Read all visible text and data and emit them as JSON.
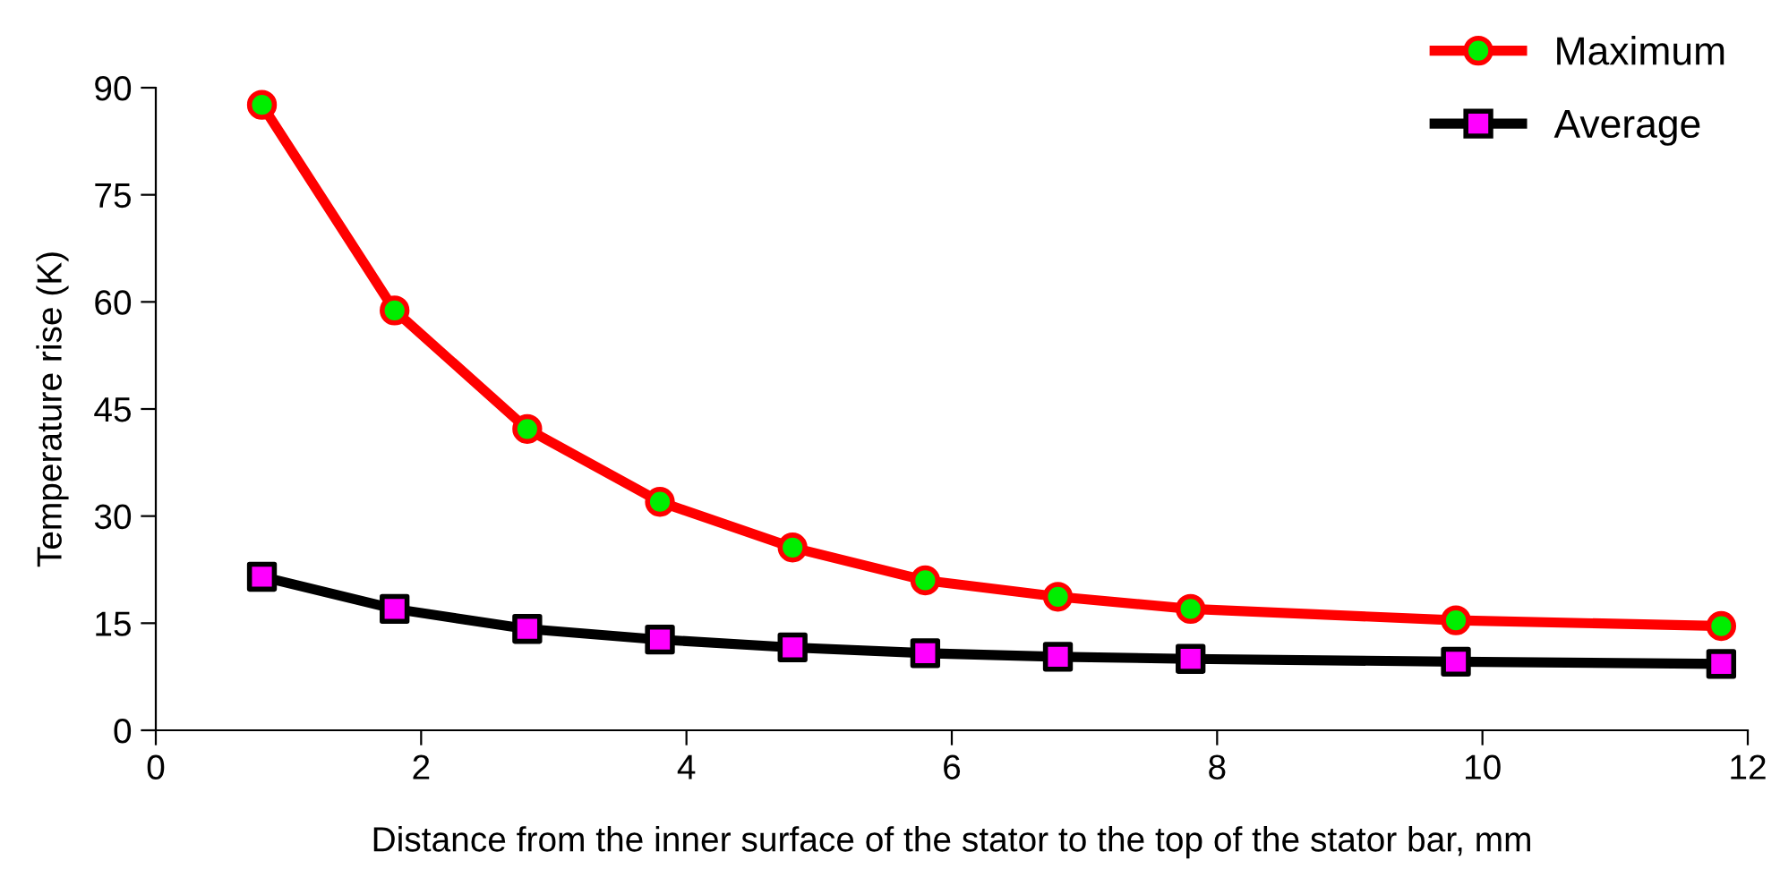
{
  "chart_data": {
    "type": "line",
    "xlabel": "Distance from the inner surface of the stator to the top of the stator bar, mm",
    "ylabel": "Temperature rise (K)",
    "x": [
      0.8,
      1.8,
      2.8,
      3.8,
      4.8,
      5.8,
      6.8,
      7.8,
      9.8,
      11.8
    ],
    "series": [
      {
        "name": "Maximum",
        "color": "#ff0000",
        "marker": "circle",
        "colors": [
          "#00ee00",
          "#00ee00",
          "#00ee00",
          "#00ee00",
          "#00ee00",
          "#00ee00",
          "#00ee00",
          "#00ee00",
          "#00ee00",
          "#00ee00"
        ],
        "values": [
          87.6,
          58.8,
          42.2,
          32.0,
          25.6,
          21.0,
          18.7,
          17.0,
          15.4,
          14.6
        ]
      },
      {
        "name": "Average",
        "color": "#000000",
        "marker": "square",
        "colors": [
          "#ff00ff",
          "#ff00ff",
          "#ff00ff",
          "#ff00ff",
          "#ff00ff",
          "#ff00ff",
          "#ff00ff",
          "#ff00ff",
          "#ff00ff",
          "#ff00ff"
        ],
        "values": [
          21.5,
          17.0,
          14.2,
          12.7,
          11.6,
          10.8,
          10.3,
          10.0,
          9.6,
          9.3
        ]
      }
    ],
    "xlim": [
      0,
      12
    ],
    "xticks": [
      0,
      2,
      4,
      6,
      8,
      10,
      12
    ],
    "ylim": [
      0,
      90
    ],
    "yticks": [
      0,
      15,
      30,
      45,
      60,
      75,
      90
    ],
    "grid": false,
    "legend": "top right",
    "line_style": "solid"
  }
}
